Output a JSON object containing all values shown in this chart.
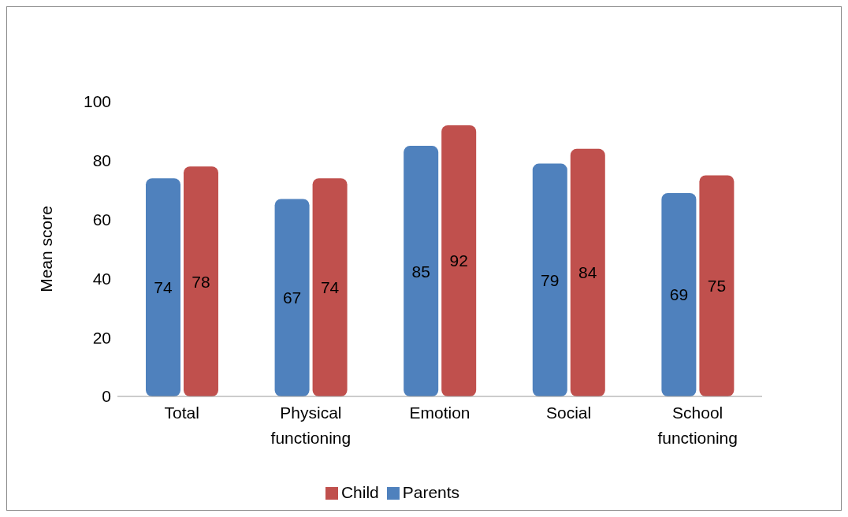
{
  "chart_data": {
    "type": "bar",
    "ylabel": "Mean score",
    "categories": [
      "Total",
      "Physical functioning",
      "Emotion",
      "Social",
      "School functioning"
    ],
    "series": [
      {
        "name": "Parents",
        "color": "#4f81bd",
        "values": [
          74,
          67,
          85,
          79,
          69
        ]
      },
      {
        "name": "Child",
        "color": "#c0504d",
        "values": [
          78,
          74,
          92,
          84,
          75
        ]
      }
    ],
    "ylim": [
      0,
      100
    ],
    "yticks": [
      0,
      20,
      40,
      60,
      80,
      100
    ],
    "grid": false,
    "legend": "bottom",
    "data_labels": true
  }
}
